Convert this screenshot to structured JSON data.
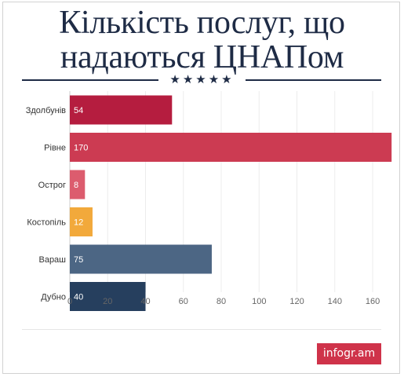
{
  "header": {
    "title_line1": "Кількість послуг, що",
    "title_line2": "надаються ЦНАПом",
    "stars": "★★★★★"
  },
  "chart_data": {
    "type": "bar",
    "orientation": "horizontal",
    "categories": [
      "Здолбунів",
      "Рівне",
      "Острог",
      "Костопіль",
      "Вараш",
      "Дубно"
    ],
    "values": [
      54,
      170,
      8,
      12,
      75,
      40
    ],
    "colors": [
      "#b51d3f",
      "#cc3b52",
      "#dc5c6e",
      "#f2a93b",
      "#4c6684",
      "#263f5e"
    ],
    "xticks": [
      0,
      20,
      40,
      60,
      80,
      100,
      120,
      140,
      160
    ],
    "xlim": [
      0,
      172
    ],
    "grid": true,
    "title": "",
    "xlabel": "",
    "ylabel": ""
  },
  "footer": {
    "brand": "infogr.am",
    "brand_color": "#cf334a"
  }
}
